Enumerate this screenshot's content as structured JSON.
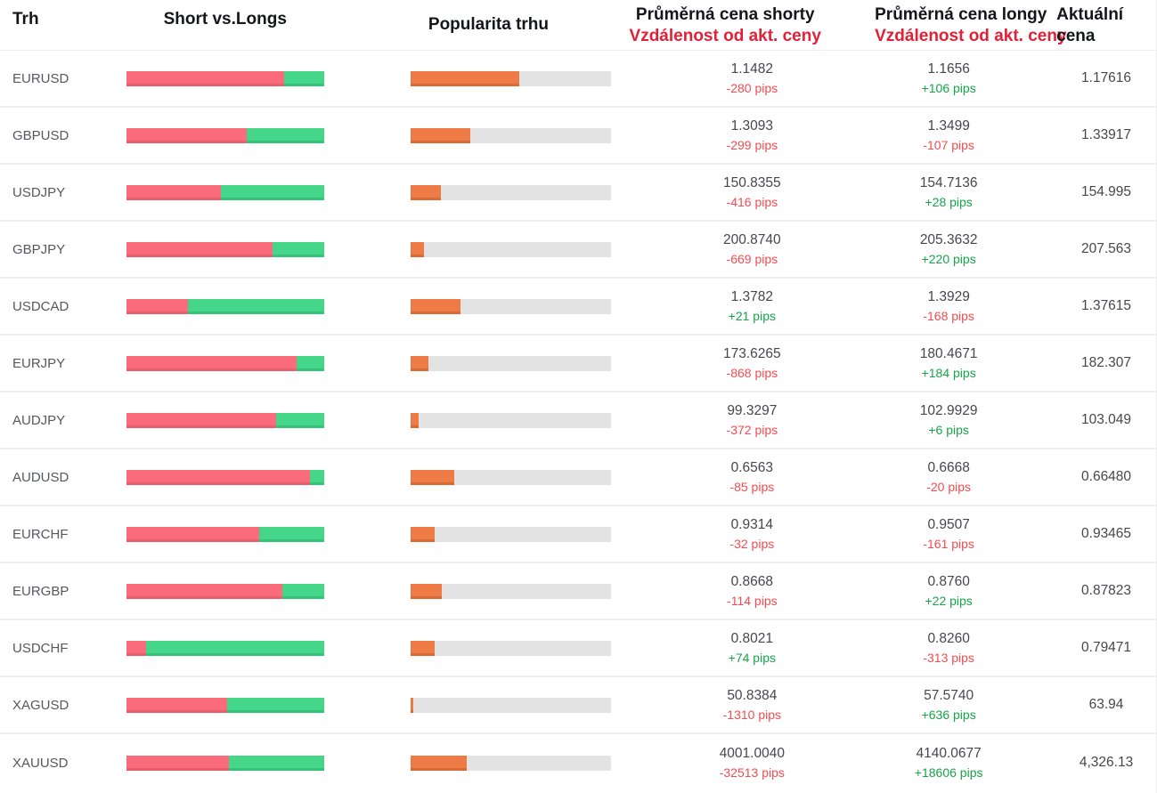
{
  "header": {
    "col_market": "Trh",
    "col_shorts_longs": "Short vs.Longs",
    "col_popularity": "Popularita trhu",
    "col_short_price_line1": "Průměrná cena shorty",
    "col_short_price_line2": "Vzdálenost od akt. ceny",
    "col_long_price_line1": "Průměrná cena longy",
    "col_long_price_line2": "Vzdálenost od akt. ceny",
    "col_current_line1": "Aktuální",
    "col_current_line2": "cena"
  },
  "colors": {
    "short_bar": "#fa6c7c",
    "short_bar_edge": "#e75f6f",
    "long_bar": "#46d68a",
    "long_bar_edge": "#35c27b",
    "popularity_bar": "#ee7a46",
    "popularity_bar_edge": "#d96a36",
    "bar_track": "#e3e3e3",
    "pips_negative": "#f64b4f",
    "pips_positive": "#16a448",
    "header_red": "#e22037",
    "header_text": "#15161a",
    "price_text": "#46474d",
    "market_text": "#56575f",
    "row_divider": "#e9eff4"
  },
  "rows": [
    {
      "market": "EURUSD",
      "short_pct": 80,
      "popularity_pct": 54,
      "short_price": "1.1482",
      "short_dist": "-280 pips",
      "short_dir": "down",
      "long_price": "1.1656",
      "long_dist": "+106 pips",
      "long_dir": "up",
      "current_price": "1.17616"
    },
    {
      "market": "GBPUSD",
      "short_pct": 61,
      "popularity_pct": 30,
      "short_price": "1.3093",
      "short_dist": "-299 pips",
      "short_dir": "down",
      "long_price": "1.3499",
      "long_dist": "-107 pips",
      "long_dir": "down",
      "current_price": "1.33917"
    },
    {
      "market": "USDJPY",
      "short_pct": 48,
      "popularity_pct": 15,
      "short_price": "150.8355",
      "short_dist": "-416 pips",
      "short_dir": "down",
      "long_price": "154.7136",
      "long_dist": "+28 pips",
      "long_dir": "up",
      "current_price": "154.995"
    },
    {
      "market": "GBPJPY",
      "short_pct": 74,
      "popularity_pct": 7,
      "short_price": "200.8740",
      "short_dist": "-669 pips",
      "short_dir": "down",
      "long_price": "205.3632",
      "long_dist": "+220 pips",
      "long_dir": "up",
      "current_price": "207.563"
    },
    {
      "market": "USDCAD",
      "short_pct": 31,
      "popularity_pct": 25,
      "short_price": "1.3782",
      "short_dist": "+21 pips",
      "short_dir": "up",
      "long_price": "1.3929",
      "long_dist": "-168 pips",
      "long_dir": "down",
      "current_price": "1.37615"
    },
    {
      "market": "EURJPY",
      "short_pct": 86,
      "popularity_pct": 9,
      "short_price": "173.6265",
      "short_dist": "-868 pips",
      "short_dir": "down",
      "long_price": "180.4671",
      "long_dist": "+184 pips",
      "long_dir": "up",
      "current_price": "182.307"
    },
    {
      "market": "AUDJPY",
      "short_pct": 76,
      "popularity_pct": 4,
      "short_price": "99.3297",
      "short_dist": "-372 pips",
      "short_dir": "down",
      "long_price": "102.9929",
      "long_dist": "+6 pips",
      "long_dir": "up",
      "current_price": "103.049"
    },
    {
      "market": "AUDUSD",
      "short_pct": 93,
      "popularity_pct": 22,
      "short_price": "0.6563",
      "short_dist": "-85 pips",
      "short_dir": "down",
      "long_price": "0.6668",
      "long_dist": "-20 pips",
      "long_dir": "down",
      "current_price": "0.66480"
    },
    {
      "market": "EURCHF",
      "short_pct": 67,
      "popularity_pct": 12,
      "short_price": "0.9314",
      "short_dist": "-32 pips",
      "short_dir": "down",
      "long_price": "0.9507",
      "long_dist": "-161 pips",
      "long_dir": "down",
      "current_price": "0.93465"
    },
    {
      "market": "EURGBP",
      "short_pct": 79,
      "popularity_pct": 15.5,
      "short_price": "0.8668",
      "short_dist": "-114 pips",
      "short_dir": "down",
      "long_price": "0.8760",
      "long_dist": "+22 pips",
      "long_dir": "up",
      "current_price": "0.87823"
    },
    {
      "market": "USDCHF",
      "short_pct": 10,
      "popularity_pct": 12,
      "short_price": "0.8021",
      "short_dist": "+74 pips",
      "short_dir": "up",
      "long_price": "0.8260",
      "long_dist": "-313 pips",
      "long_dir": "down",
      "current_price": "0.79471"
    },
    {
      "market": "XAGUSD",
      "short_pct": 51,
      "popularity_pct": 1.5,
      "short_price": "50.8384",
      "short_dist": "-1310 pips",
      "short_dir": "down",
      "long_price": "57.5740",
      "long_dist": "+636 pips",
      "long_dir": "up",
      "current_price": "63.94"
    },
    {
      "market": "XAUUSD",
      "short_pct": 52,
      "popularity_pct": 28,
      "short_price": "4001.0040",
      "short_dist": "-32513 pips",
      "short_dir": "down",
      "long_price": "4140.0677",
      "long_dist": "+18606 pips",
      "long_dir": "up",
      "current_price": "4,326.13"
    }
  ],
  "chart_data": {
    "type": "table",
    "title": "",
    "columns": [
      "Trh",
      "Short %",
      "Long %",
      "Popularita trhu %",
      "Průměrná cena shorty",
      "Vzdálenost od akt. ceny (shorty)",
      "Průměrná cena longy",
      "Vzdálenost od akt. ceny (longy)",
      "Aktuální cena"
    ],
    "rows": [
      [
        "EURUSD",
        80,
        20,
        54,
        1.1482,
        "-280 pips",
        1.1656,
        "+106 pips",
        1.17616
      ],
      [
        "GBPUSD",
        61,
        39,
        30,
        1.3093,
        "-299 pips",
        1.3499,
        "-107 pips",
        1.33917
      ],
      [
        "USDJPY",
        48,
        52,
        15,
        150.8355,
        "-416 pips",
        154.7136,
        "+28 pips",
        154.995
      ],
      [
        "GBPJPY",
        74,
        26,
        7,
        200.874,
        "-669 pips",
        205.3632,
        "+220 pips",
        207.563
      ],
      [
        "USDCAD",
        31,
        69,
        25,
        1.3782,
        "+21 pips",
        1.3929,
        "-168 pips",
        1.37615
      ],
      [
        "EURJPY",
        86,
        14,
        9,
        173.6265,
        "-868 pips",
        180.4671,
        "+184 pips",
        182.307
      ],
      [
        "AUDJPY",
        76,
        24,
        4,
        99.3297,
        "-372 pips",
        102.9929,
        "+6 pips",
        103.049
      ],
      [
        "AUDUSD",
        93,
        7,
        22,
        0.6563,
        "-85 pips",
        0.6668,
        "-20 pips",
        0.6648
      ],
      [
        "EURCHF",
        67,
        33,
        12,
        0.9314,
        "-32 pips",
        0.9507,
        "-161 pips",
        0.93465
      ],
      [
        "EURGBP",
        79,
        21,
        15.5,
        0.8668,
        "-114 pips",
        0.876,
        "+22 pips",
        0.87823
      ],
      [
        "USDCHF",
        10,
        90,
        12,
        0.8021,
        "+74 pips",
        0.826,
        "-313 pips",
        0.79471
      ],
      [
        "XAGUSD",
        51,
        49,
        1.5,
        50.8384,
        "-1310 pips",
        57.574,
        "+636 pips",
        63.94
      ],
      [
        "XAUUSD",
        52,
        48,
        28,
        4001.004,
        "-32513 pips",
        4140.0677,
        "+18606 pips",
        "4,326.13"
      ]
    ],
    "legend_position": "none",
    "grid": false,
    "embedded_bars": [
      {
        "name": "Short vs.Longs",
        "type": "bar",
        "colors": [
          "#fa6c7c",
          "#46d68a"
        ],
        "range_pct": [
          0,
          100
        ]
      },
      {
        "name": "Popularita trhu",
        "type": "bar",
        "colors": [
          "#ee7a46"
        ],
        "track": "#e3e3e3",
        "range_pct": [
          0,
          100
        ]
      }
    ]
  }
}
